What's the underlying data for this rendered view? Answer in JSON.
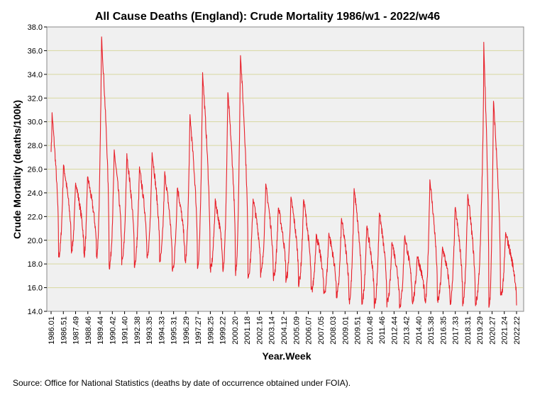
{
  "chart_data": {
    "type": "line",
    "title": "All Cause Deaths (England): Crude Mortality 1986/w1 - 2022/w46",
    "xlabel": "Year.Week",
    "ylabel": "Crude Mortality (deaths/100k)",
    "ylim": [
      14.0,
      38.0
    ],
    "y_ticks": [
      "14.0",
      "16.0",
      "18.0",
      "20.0",
      "22.0",
      "24.0",
      "26.0",
      "28.0",
      "30.0",
      "32.0",
      "34.0",
      "36.0",
      "38.0"
    ],
    "x_tick_labels": [
      "1986.01",
      "1986.51",
      "1987.49",
      "1988.46",
      "1989.44",
      "1990.42",
      "1991.40",
      "1992.38",
      "1993.35",
      "1994.33",
      "1995.31",
      "1996.29",
      "1997.27",
      "1998.25",
      "1999.22",
      "2000.20",
      "2001.18",
      "2002.16",
      "2003.14",
      "2004.12",
      "2005.09",
      "2006.07",
      "2007.05",
      "2008.03",
      "2009.01",
      "2009.51",
      "2010.48",
      "2011.46",
      "2012.44",
      "2013.42",
      "2014.40",
      "2015.38",
      "2016.35",
      "2017.33",
      "2018.31",
      "2019.29",
      "2020.27",
      "2021.24",
      "2022.22"
    ],
    "grid": "horizontal",
    "colors": {
      "line": "#e8202a",
      "plot_background": "#f0f0f0",
      "gridline": "#d8d8a0"
    },
    "series": [
      {
        "x_start": "1986.01",
        "x_end": "2022.46",
        "winter_peaks": [
          {
            "x": "1986.05",
            "y": 30.7
          },
          {
            "x": "1986.52",
            "y": 26.4
          },
          {
            "x": "1987.50",
            "y": 24.9
          },
          {
            "x": "1988.47",
            "y": 25.4
          },
          {
            "x": "1990.01",
            "y": 37.1
          },
          {
            "x": "1991.01",
            "y": 27.5
          },
          {
            "x": "1992.01",
            "y": 27.2
          },
          {
            "x": "1993.01",
            "y": 26.1
          },
          {
            "x": "1994.01",
            "y": 27.4
          },
          {
            "x": "1995.01",
            "y": 25.7
          },
          {
            "x": "1996.01",
            "y": 24.5
          },
          {
            "x": "1997.01",
            "y": 30.5
          },
          {
            "x": "1998.01",
            "y": 34.1
          },
          {
            "x": "1999.01",
            "y": 23.4
          },
          {
            "x": "2000.01",
            "y": 32.5
          },
          {
            "x": "2001.01",
            "y": 35.7
          },
          {
            "x": "2002.01",
            "y": 23.5
          },
          {
            "x": "2003.01",
            "y": 24.7
          },
          {
            "x": "2004.01",
            "y": 22.8
          },
          {
            "x": "2005.01",
            "y": 23.6
          },
          {
            "x": "2006.01",
            "y": 23.5
          },
          {
            "x": "2007.01",
            "y": 20.5
          },
          {
            "x": "2008.01",
            "y": 20.6
          },
          {
            "x": "2009.01",
            "y": 21.8
          },
          {
            "x": "2010.01",
            "y": 24.4
          },
          {
            "x": "2011.01",
            "y": 21.2
          },
          {
            "x": "2012.01",
            "y": 22.4
          },
          {
            "x": "2013.01",
            "y": 19.9
          },
          {
            "x": "2014.01",
            "y": 20.4
          },
          {
            "x": "2015.01",
            "y": 18.7
          },
          {
            "x": "2016.01",
            "y": 25.1
          },
          {
            "x": "2017.01",
            "y": 19.4
          },
          {
            "x": "2018.01",
            "y": 22.8
          },
          {
            "x": "2019.01",
            "y": 23.9
          },
          {
            "x": "2020.01",
            "y": 19.6
          },
          {
            "x": "2020.15",
            "y": 36.6
          },
          {
            "x": "2021.03",
            "y": 31.8
          },
          {
            "x": "2022.01",
            "y": 20.6
          }
        ],
        "summer_troughs": [
          {
            "x": "1986.32",
            "y": 18.7
          },
          {
            "x": "1987.32",
            "y": 19.2
          },
          {
            "x": "1988.32",
            "y": 18.8
          },
          {
            "x": "1989.32",
            "y": 18.7
          },
          {
            "x": "1990.32",
            "y": 17.8
          },
          {
            "x": "1991.32",
            "y": 18.2
          },
          {
            "x": "1992.32",
            "y": 18.0
          },
          {
            "x": "1993.32",
            "y": 18.5
          },
          {
            "x": "1994.32",
            "y": 18.3
          },
          {
            "x": "1995.32",
            "y": 17.5
          },
          {
            "x": "1996.32",
            "y": 18.1
          },
          {
            "x": "1997.32",
            "y": 17.7
          },
          {
            "x": "1998.32",
            "y": 17.5
          },
          {
            "x": "1999.32",
            "y": 17.6
          },
          {
            "x": "2000.32",
            "y": 17.3
          },
          {
            "x": "2001.32",
            "y": 17.1
          },
          {
            "x": "2002.32",
            "y": 17.2
          },
          {
            "x": "2003.32",
            "y": 16.9
          },
          {
            "x": "2004.32",
            "y": 16.7
          },
          {
            "x": "2005.32",
            "y": 16.4
          },
          {
            "x": "2006.32",
            "y": 15.7
          },
          {
            "x": "2007.32",
            "y": 15.5
          },
          {
            "x": "2008.32",
            "y": 15.3
          },
          {
            "x": "2009.32",
            "y": 14.9
          },
          {
            "x": "2010.32",
            "y": 14.8
          },
          {
            "x": "2011.32",
            "y": 14.6
          },
          {
            "x": "2012.32",
            "y": 14.7
          },
          {
            "x": "2013.32",
            "y": 14.5
          },
          {
            "x": "2014.32",
            "y": 14.9
          },
          {
            "x": "2015.32",
            "y": 14.7
          },
          {
            "x": "2016.32",
            "y": 14.9
          },
          {
            "x": "2017.32",
            "y": 14.8
          },
          {
            "x": "2018.32",
            "y": 14.8
          },
          {
            "x": "2019.32",
            "y": 14.7
          },
          {
            "x": "2020.36",
            "y": 14.4
          },
          {
            "x": "2021.32",
            "y": 15.3
          },
          {
            "x": "2022.46",
            "y": 14.5
          }
        ]
      }
    ]
  },
  "footer": {
    "source": "Source: Office for National Statistics (deaths by date of occurrence obtained under FOIA)."
  }
}
